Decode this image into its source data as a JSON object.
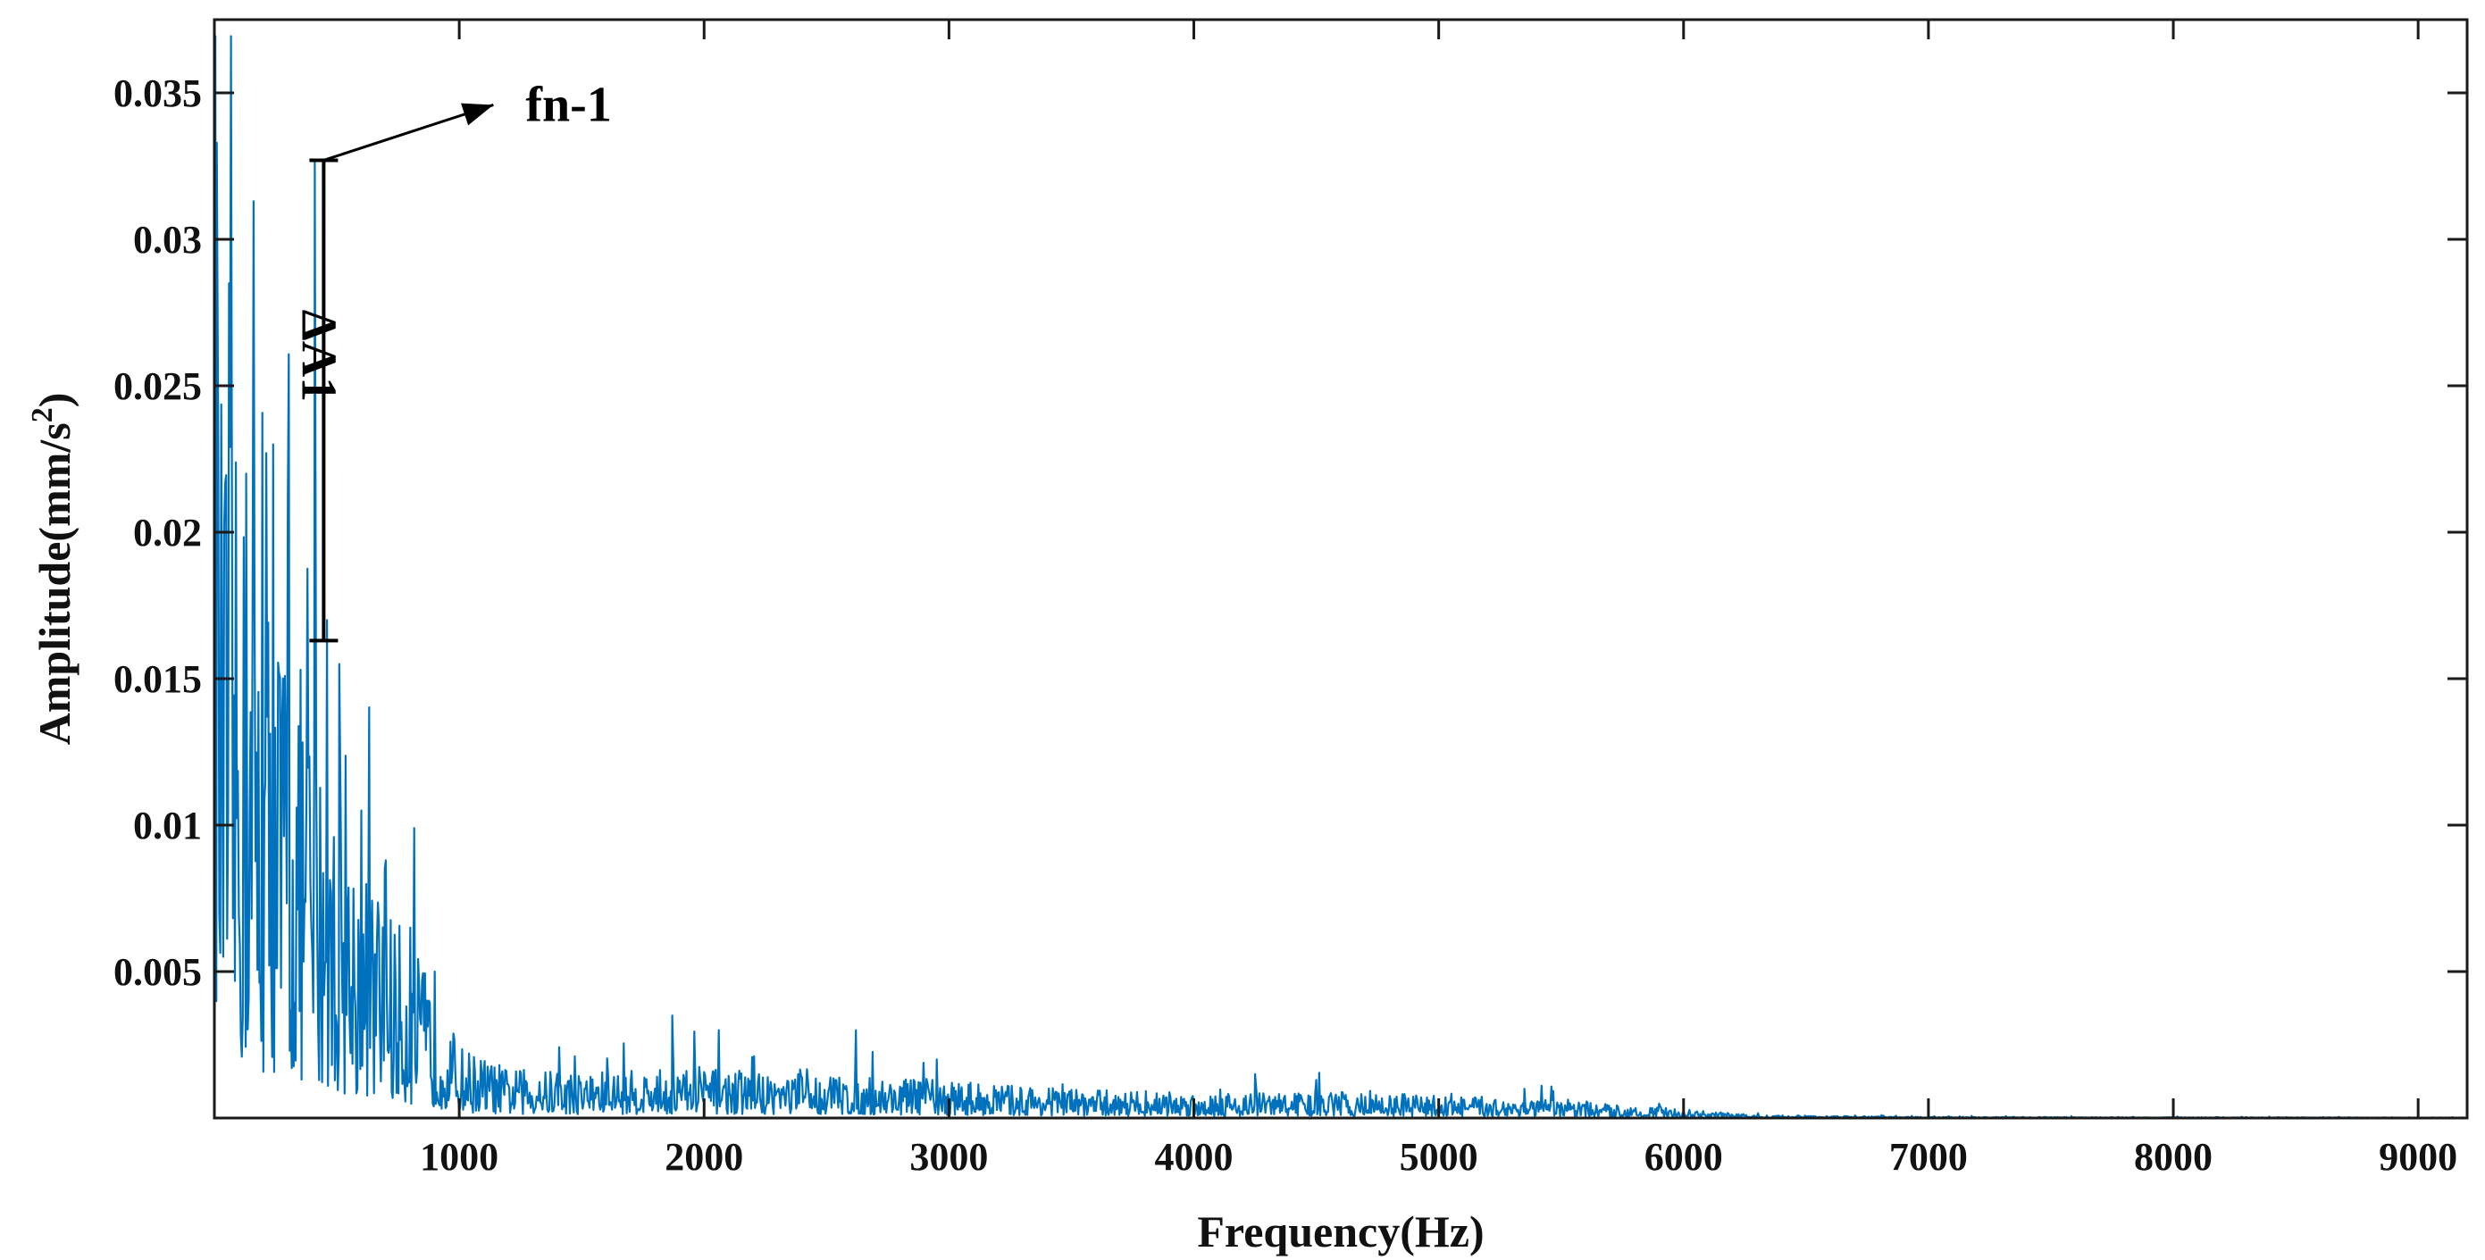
{
  "chart_data": {
    "type": "line",
    "title": "",
    "xlabel": "Frequency(Hz)",
    "ylabel_main": "Amplitude(mm/s",
    "ylabel_sup": "2",
    "ylabel_close": ")",
    "xlim": [
      0,
      9200
    ],
    "ylim": [
      0,
      0.0375
    ],
    "x_ticks": [
      {
        "v": 1000,
        "label": "1000"
      },
      {
        "v": 2000,
        "label": "2000"
      },
      {
        "v": 3000,
        "label": "3000"
      },
      {
        "v": 4000,
        "label": "4000"
      },
      {
        "v": 5000,
        "label": "5000"
      },
      {
        "v": 6000,
        "label": "6000"
      },
      {
        "v": 7000,
        "label": "7000"
      },
      {
        "v": 8000,
        "label": "8000"
      },
      {
        "v": 9000,
        "label": "9000"
      }
    ],
    "y_ticks": [
      {
        "v": 0.005,
        "label": "0.005"
      },
      {
        "v": 0.01,
        "label": "0.01"
      },
      {
        "v": 0.015,
        "label": "0.015"
      },
      {
        "v": 0.02,
        "label": "0.02"
      },
      {
        "v": 0.025,
        "label": "0.025"
      },
      {
        "v": 0.03,
        "label": "0.03"
      },
      {
        "v": 0.035,
        "label": "0.035"
      }
    ],
    "grid": false,
    "legend": "none",
    "series": [
      {
        "color": "#0072BD",
        "envelope": [
          [
            0,
            0.026
          ],
          [
            100,
            0.022
          ],
          [
            200,
            0.019
          ],
          [
            300,
            0.017
          ],
          [
            400,
            0.014
          ],
          [
            500,
            0.011
          ],
          [
            600,
            0.009
          ],
          [
            700,
            0.0075
          ],
          [
            800,
            0.006
          ],
          [
            900,
            0.0045
          ],
          [
            1000,
            0.0025
          ],
          [
            1200,
            0.0017
          ],
          [
            1500,
            0.0016
          ],
          [
            2000,
            0.0017
          ],
          [
            2500,
            0.0015
          ],
          [
            3000,
            0.0013
          ],
          [
            3500,
            0.001
          ],
          [
            4000,
            0.0009
          ],
          [
            4500,
            0.0009
          ],
          [
            5000,
            0.0008
          ],
          [
            5500,
            0.0006
          ],
          [
            6000,
            0.0003
          ],
          [
            6300,
            0.0001
          ],
          [
            7000,
            4e-05
          ],
          [
            9200,
            2e-05
          ]
        ],
        "peaks": [
          [
            10,
            0.0333
          ],
          [
            60,
            0.0285
          ],
          [
            130,
            0.022
          ],
          [
            160,
            0.0313
          ],
          [
            240,
            0.023
          ],
          [
            300,
            0.021
          ],
          [
            410,
            0.0327
          ],
          [
            460,
            0.017
          ],
          [
            510,
            0.0155
          ],
          [
            600,
            0.0105
          ],
          [
            700,
            0.0088
          ],
          [
            800,
            0.0065
          ],
          [
            900,
            0.005
          ],
          [
            1870,
            0.0035
          ],
          [
            2060,
            0.003
          ],
          [
            2620,
            0.003
          ],
          [
            2950,
            0.002
          ],
          [
            4250,
            0.0015
          ],
          [
            4500,
            0.0013
          ],
          [
            5350,
            0.001
          ]
        ]
      }
    ],
    "annotations": {
      "peak_label": "fn-1",
      "delta_label": "ΔA1",
      "peak_point": [
        410,
        0.0327
      ],
      "delta_bottom": 0.0163
    }
  }
}
